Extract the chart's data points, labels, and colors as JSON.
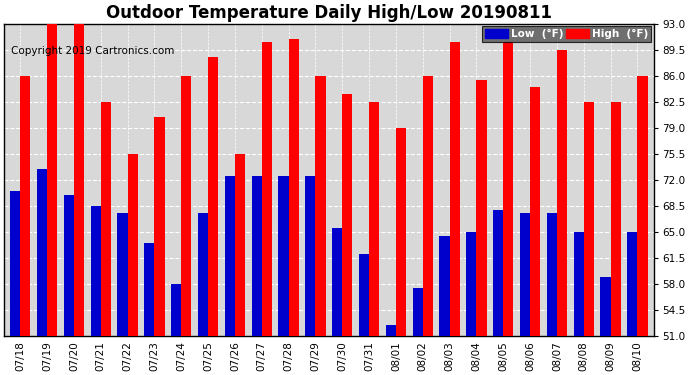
{
  "title": "Outdoor Temperature Daily High/Low 20190811",
  "copyright": "Copyright 2019 Cartronics.com",
  "ylim": [
    51.0,
    93.0
  ],
  "yticks": [
    51.0,
    54.5,
    58.0,
    61.5,
    65.0,
    68.5,
    72.0,
    75.5,
    79.0,
    82.5,
    86.0,
    89.5,
    93.0
  ],
  "background_color": "#ffffff",
  "plot_bg_color": "#d8d8d8",
  "grid_color": "#ffffff",
  "dates": [
    "07/18",
    "07/19",
    "07/20",
    "07/21",
    "07/22",
    "07/23",
    "07/24",
    "07/25",
    "07/26",
    "07/27",
    "07/28",
    "07/29",
    "07/30",
    "07/31",
    "08/01",
    "08/02",
    "08/03",
    "08/04",
    "08/05",
    "08/06",
    "08/07",
    "08/08",
    "08/09",
    "08/10"
  ],
  "highs": [
    86.0,
    93.0,
    93.0,
    82.5,
    75.5,
    80.5,
    86.0,
    88.5,
    75.5,
    90.5,
    91.0,
    86.0,
    83.5,
    82.5,
    79.0,
    86.0,
    90.5,
    85.5,
    90.5,
    84.5,
    89.5,
    82.5,
    82.5,
    86.0
  ],
  "lows": [
    70.5,
    73.5,
    70.0,
    68.5,
    67.5,
    63.5,
    58.0,
    67.5,
    72.5,
    72.5,
    72.5,
    72.5,
    65.5,
    62.0,
    52.5,
    57.5,
    64.5,
    65.0,
    68.0,
    67.5,
    67.5,
    65.0,
    59.0,
    65.0
  ],
  "bar_width": 0.38,
  "low_color": "#0000cc",
  "high_color": "#ff0000",
  "legend_low_label": "Low  (°F)",
  "legend_high_label": "High  (°F)",
  "title_fontsize": 12,
  "copyright_fontsize": 7.5,
  "tick_fontsize": 7.5
}
